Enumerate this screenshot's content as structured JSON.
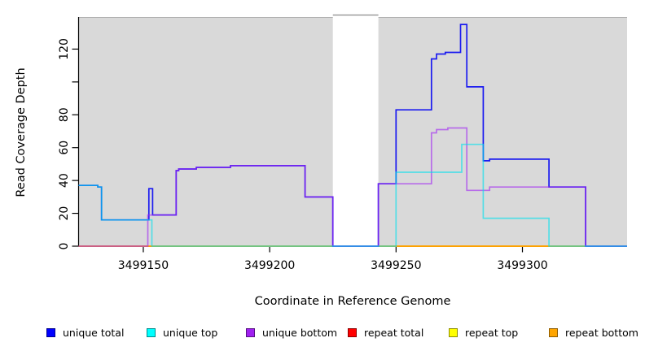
{
  "figure": {
    "x_axis_title": "Coordinate in Reference Genome",
    "y_axis_title": "Read Coverage Depth"
  },
  "legend": {
    "items": [
      {
        "label": "unique total",
        "color": "#0000FF"
      },
      {
        "label": "unique top",
        "color": "#00FFFF"
      },
      {
        "label": "unique bottom",
        "color": "#A020F0"
      },
      {
        "label": "repeat total",
        "color": "#FF0000"
      },
      {
        "label": "repeat top",
        "color": "#FFFF00"
      },
      {
        "label": "repeat bottom",
        "color": "#FFA500"
      }
    ]
  },
  "chart_data": {
    "type": "line",
    "subtype": "step",
    "title": "",
    "xlabel": "Coordinate in Reference Genome",
    "ylabel": "Read Coverage Depth",
    "xlim": [
      3499124.4,
      3499341.4
    ],
    "ylim": [
      0,
      139.5
    ],
    "grid": false,
    "legend_position": "bottom",
    "x_ticks": [
      {
        "value": 3499150,
        "label": "3499150"
      },
      {
        "value": 3499200,
        "label": "3499200"
      },
      {
        "value": 3499250,
        "label": "3499250"
      },
      {
        "value": 3499300,
        "label": "3499300"
      }
    ],
    "y_ticks": [
      {
        "value": 0,
        "label": "0"
      },
      {
        "value": 20,
        "label": "20"
      },
      {
        "value": 40,
        "label": "40"
      },
      {
        "value": 60,
        "label": "60"
      },
      {
        "value": 80,
        "label": "80"
      },
      {
        "value": 100,
        "label": ""
      },
      {
        "value": 120,
        "label": "120"
      }
    ],
    "background": {
      "plot_fill": "#D9D9D9",
      "masked_region": {
        "x0": 3499225,
        "x1": 3499243,
        "fill": "#FFFFFF"
      }
    },
    "series": [
      {
        "name": "unique total",
        "color": "#1b1bf0",
        "opacity": 1,
        "draw_index": 4,
        "x_end": 3499341.4,
        "steps": [
          [
            3499124.4,
            37
          ],
          [
            3499132,
            36
          ],
          [
            3499133.5,
            16
          ],
          [
            3499152.2,
            35
          ],
          [
            3499153.7,
            19
          ],
          [
            3499163,
            46
          ],
          [
            3499164,
            47
          ],
          [
            3499171,
            48
          ],
          [
            3499184.5,
            49
          ],
          [
            3499214,
            30
          ],
          [
            3499225,
            0
          ],
          [
            3499243,
            38
          ],
          [
            3499250,
            83
          ],
          [
            3499264,
            114
          ],
          [
            3499266,
            117
          ],
          [
            3499269.5,
            118
          ],
          [
            3499275.5,
            135
          ],
          [
            3499278,
            97
          ],
          [
            3499284.5,
            52
          ],
          [
            3499287,
            53
          ],
          [
            3499310.5,
            36
          ],
          [
            3499325,
            0
          ]
        ]
      },
      {
        "name": "unique top",
        "color": "#00e0ee",
        "opacity": 0.62,
        "draw_index": 6,
        "x_end": 3499341.4,
        "steps": [
          [
            3499124.4,
            37
          ],
          [
            3499132,
            36
          ],
          [
            3499133.5,
            16
          ],
          [
            3499153.4,
            0
          ],
          [
            3499250,
            45
          ],
          [
            3499276,
            62
          ],
          [
            3499284.5,
            17
          ],
          [
            3499310.5,
            0
          ]
        ]
      },
      {
        "name": "unique bottom",
        "color": "#a228f2",
        "opacity": 0.62,
        "draw_index": 5,
        "x_end": 3499341.4,
        "steps": [
          [
            3499124.4,
            0
          ],
          [
            3499151.8,
            19
          ],
          [
            3499163,
            46
          ],
          [
            3499164,
            47
          ],
          [
            3499171,
            48
          ],
          [
            3499184.5,
            49
          ],
          [
            3499214,
            30
          ],
          [
            3499225,
            0
          ],
          [
            3499243,
            38
          ],
          [
            3499264,
            69
          ],
          [
            3499266,
            71
          ],
          [
            3499270.5,
            72
          ],
          [
            3499278,
            34
          ],
          [
            3499287,
            36
          ],
          [
            3499325,
            0
          ]
        ]
      },
      {
        "name": "repeat total",
        "color": "#ee1111",
        "opacity": 1,
        "draw_index": 1,
        "x_end": 3499341.4,
        "steps": [
          [
            3499124.4,
            0
          ]
        ]
      },
      {
        "name": "repeat top",
        "color": "#f5f500",
        "opacity": 1,
        "draw_index": 2,
        "x_end": 3499341.4,
        "steps": [
          [
            3499124.4,
            0
          ]
        ]
      },
      {
        "name": "repeat bottom",
        "color": "#ff9d00",
        "opacity": 1,
        "draw_index": 3,
        "x_end": 3499341.4,
        "steps": [
          [
            3499124.4,
            0
          ]
        ]
      }
    ]
  }
}
